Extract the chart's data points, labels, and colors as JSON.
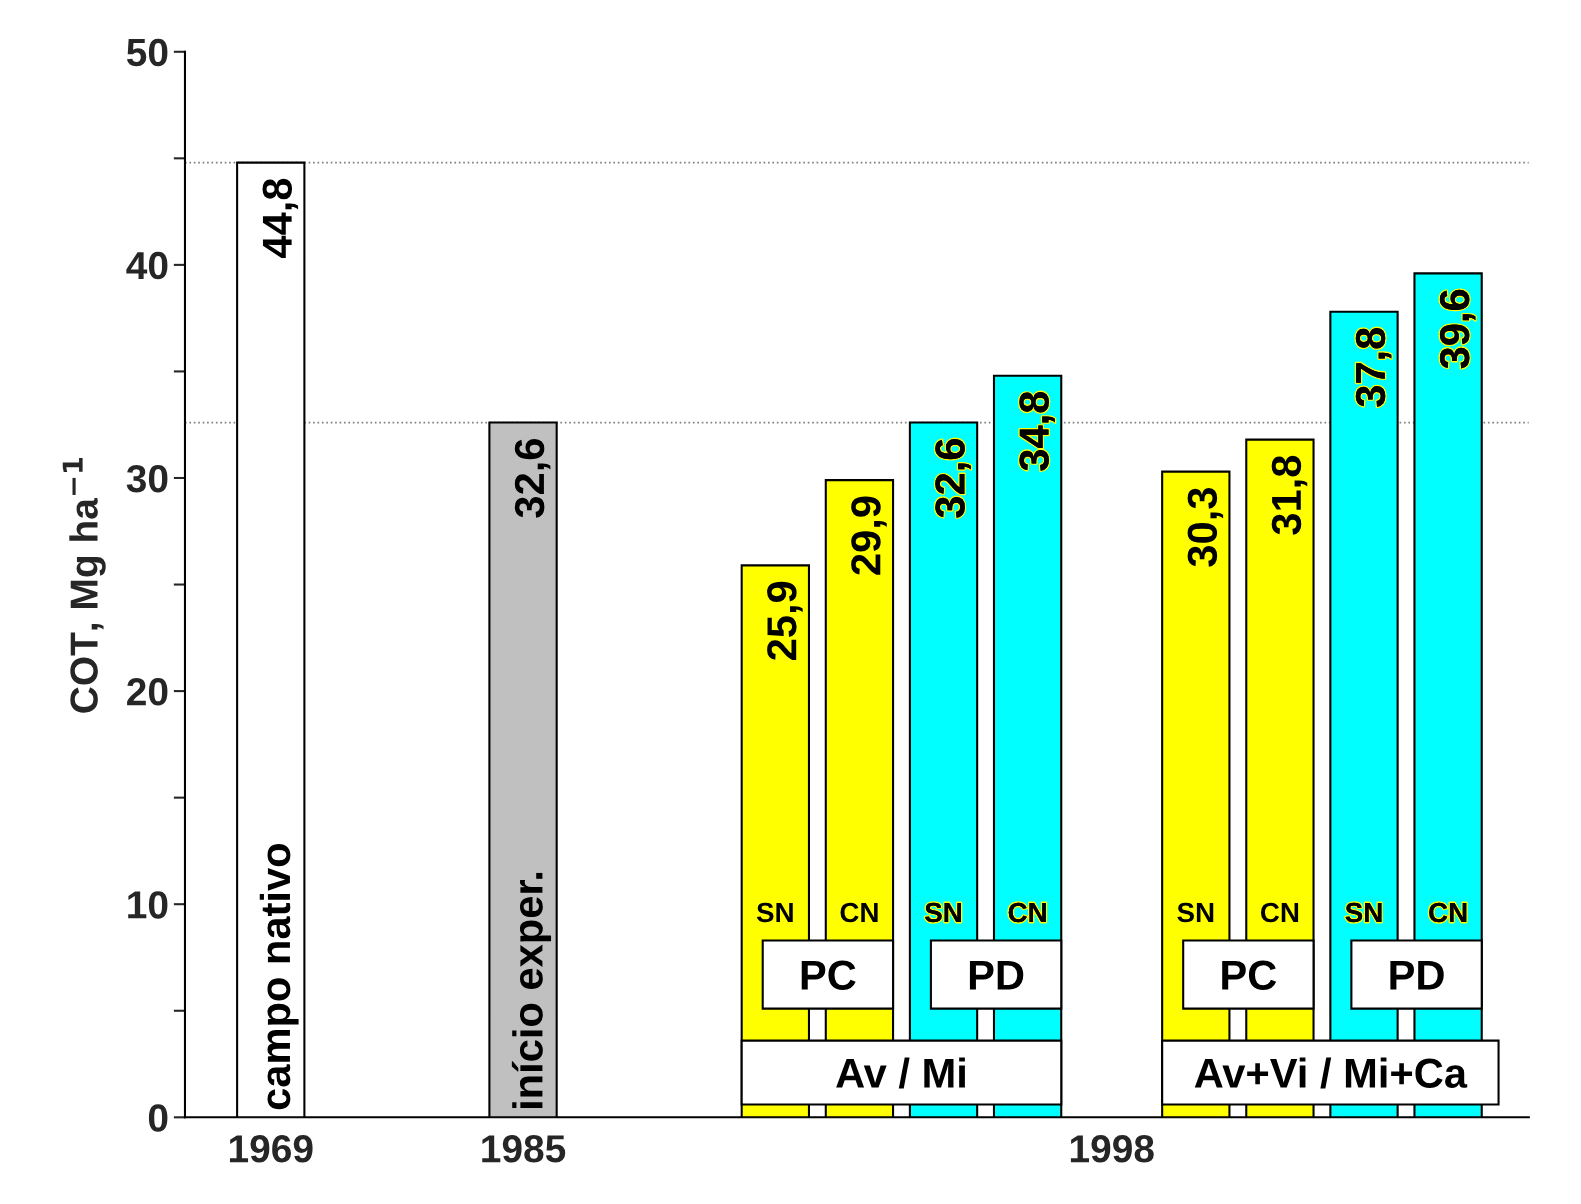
{
  "chart_data": {
    "type": "bar",
    "categories": [
      "1969",
      null,
      null,
      "1985",
      null,
      null,
      null,
      null,
      null,
      null,
      "1998",
      null,
      null,
      null,
      null
    ],
    "values": [
      44.8,
      null,
      null,
      32.6,
      null,
      null,
      25.9,
      29.9,
      32.6,
      34.8,
      null,
      30.3,
      31.8,
      37.8,
      39.6
    ],
    "colors": [
      "#ffffff",
      null,
      null,
      "#c0c0c0",
      null,
      null,
      "#ffff00",
      "#ffff00",
      "#00ffff",
      "#00ffff",
      null,
      "#ffff00",
      "#ffff00",
      "#00ffff",
      "#00ffff"
    ],
    "value_labels": [
      "44,8",
      null,
      null,
      "32,6",
      null,
      null,
      "25,9",
      "29,9",
      "32,6",
      "34,8",
      null,
      "30,3",
      "31,8",
      "37,8",
      "39,6"
    ],
    "ylabel": "COT, Mg ha$^{−1}$",
    "ylim": [
      0,
      50
    ],
    "yticks": [
      0,
      {
        "value": 5,
        "label": null
      },
      10,
      {
        "value": 15,
        "label": null
      },
      20,
      {
        "value": 25,
        "label": null
      },
      30,
      {
        "value": 35,
        "label": null
      },
      40,
      {
        "value": 45,
        "label": null
      },
      50
    ],
    "ref_lines": [
      {
        "axis": "y",
        "value": 44.8,
        "color": "#808080",
        "line_style": "dotted"
      },
      {
        "axis": "y",
        "value": 32.6,
        "color": "#808080",
        "line_style": "dotted"
      }
    ],
    "annotations": [
      "campo nativo",
      "início exper.",
      "SN",
      "CN",
      "SN",
      "CN",
      "PC",
      "PD",
      "Av / Mi",
      "SN",
      "CN",
      "SN",
      "CN",
      "PC",
      "PD",
      "Av+Vi / Mi+Ca"
    ],
    "grid": false,
    "legend": false
  }
}
